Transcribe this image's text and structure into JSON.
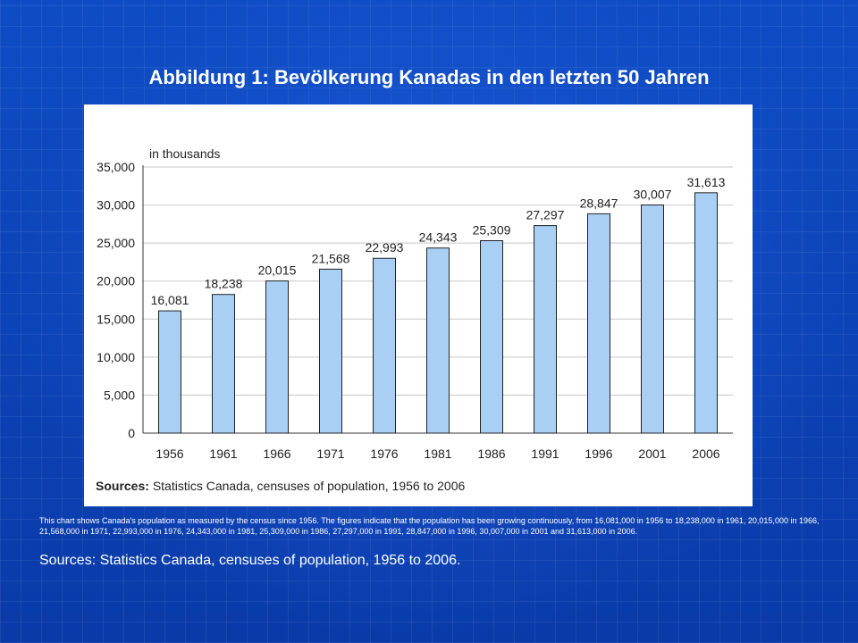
{
  "slide": {
    "title": "Abbildung 1: Bevölkerung Kanadas in den letzten 50 Jahren",
    "caption": "This chart shows Canada's population as measured by the census since 1956. The figures indicate that the population has been growing continuously, from 16,081,000 in 1956 to 18,238,000 in 1961, 20,015,000 in 1966, 21,568,000 in 1971, 22,993,000 in 1976, 24,343,000 in 1981, 25,309,000 in 1986, 27,297,000 in 1991, 28,847,000 in 1996, 30,007,000 in 2001 and 31,613,000 in 2006.",
    "source": "Sources: Statistics Canada, censuses of population, 1956 to 2006."
  },
  "chart_data": {
    "type": "bar",
    "ylabel": "in thousands",
    "categories": [
      "1956",
      "1961",
      "1966",
      "1971",
      "1976",
      "1981",
      "1986",
      "1991",
      "1996",
      "2001",
      "2006"
    ],
    "values": [
      16081,
      18238,
      20015,
      21568,
      22993,
      24343,
      25309,
      27297,
      28847,
      30007,
      31613
    ],
    "data_labels": [
      "16,081",
      "18,238",
      "20,015",
      "21,568",
      "22,993",
      "24,343",
      "25,309",
      "27,297",
      "28,847",
      "30,007",
      "31,613"
    ],
    "ylim": [
      0,
      35000
    ],
    "yticks": [
      0,
      5000,
      10000,
      15000,
      20000,
      25000,
      30000,
      35000
    ],
    "ytick_labels": [
      "0",
      "5,000",
      "10,000",
      "15,000",
      "20,000",
      "25,000",
      "30,000",
      "35,000"
    ],
    "grid": true,
    "source_label": "Sources:",
    "source_text": "Statistics Canada, censuses of population, 1956 to 2006",
    "colors": {
      "bar_fill": "#a9cff5",
      "bar_stroke": "#222222",
      "grid": "#c8c8c8"
    }
  }
}
